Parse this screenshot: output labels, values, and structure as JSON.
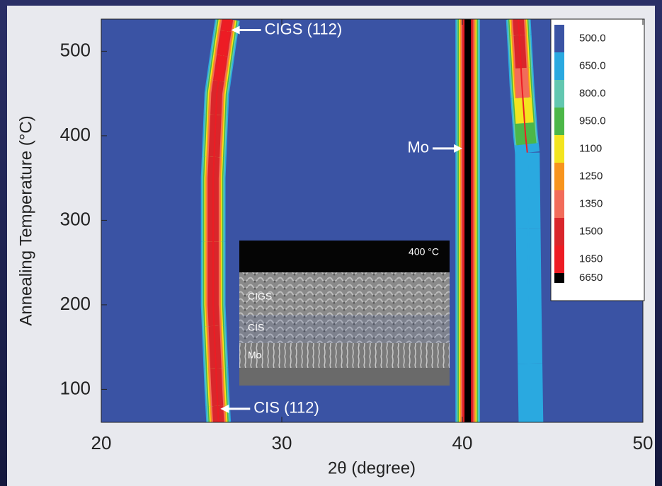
{
  "chart_data": {
    "type": "contour",
    "x_label": "2θ (degree)",
    "y_label": "Annealing Temperature (°C)",
    "xlim": [
      20,
      50
    ],
    "xticks": [
      20,
      30,
      40,
      50
    ],
    "ylim": [
      61,
      538
    ],
    "yticks": [
      100,
      200,
      300,
      400,
      500
    ],
    "background_color": "#3a53a4",
    "series": [
      {
        "color": "#ed1c24",
        "x": [
          26.5,
          26.4,
          26.3,
          26.2,
          26.2,
          26.2,
          26.2,
          26.3,
          26.4,
          26.6,
          26.8,
          27.0
        ],
        "y": [
          61,
          100,
          150,
          200,
          250,
          300,
          350,
          400,
          450,
          480,
          510,
          538
        ],
        "intensity": [
          1500,
          1500,
          1500,
          1500,
          1500,
          1500,
          1500,
          1500,
          1500,
          1650,
          1650,
          1650
        ]
      },
      {
        "color": "#000000",
        "x": [
          40.3,
          40.3
        ],
        "y": [
          61,
          538
        ],
        "intensity": [
          6650,
          6650
        ]
      },
      {
        "color": "#ed1c24",
        "x": [
          43.6,
          43.5,
          43.4,
          43.3,
          43.2,
          43.1
        ],
        "y": [
          380,
          400,
          430,
          460,
          500,
          538
        ],
        "intensity": [
          650,
          950,
          1100,
          1350,
          1500,
          1500
        ]
      },
      {
        "color": "#2aa9e0",
        "x": [
          43.8,
          43.7,
          43.6
        ],
        "y": [
          61,
          200,
          380
        ],
        "intensity": [
          650,
          650,
          650
        ]
      }
    ],
    "colorbar": {
      "levels": [
        {
          "value": 500,
          "label": "500.0"
        },
        {
          "value": 650,
          "label": "650.0"
        },
        {
          "value": 800,
          "label": "800.0"
        },
        {
          "value": 950,
          "label": "950.0"
        },
        1100,
        1250,
        1350,
        1500,
        1650,
        6650
      ],
      "colors": [
        "#3a53a4",
        "#2aa9e0",
        "#62c7b0",
        "#4cb748",
        "#f3e41f",
        "#f7941d",
        "#f26c5a",
        "#d9262b",
        "#ed1c24",
        "#000000"
      ]
    },
    "annotations": [
      {
        "text": "CIGS (112)",
        "x": 27.2,
        "y": 525,
        "side": "right"
      },
      {
        "text": "Mo",
        "x": 40.0,
        "y": 385,
        "side": "left"
      },
      {
        "text": "CIS (112)",
        "x": 26.6,
        "y": 77,
        "side": "right"
      }
    ],
    "inset": {
      "title": "400 °C",
      "layers": [
        "CIGS",
        "CIS",
        "Mo"
      ]
    }
  }
}
